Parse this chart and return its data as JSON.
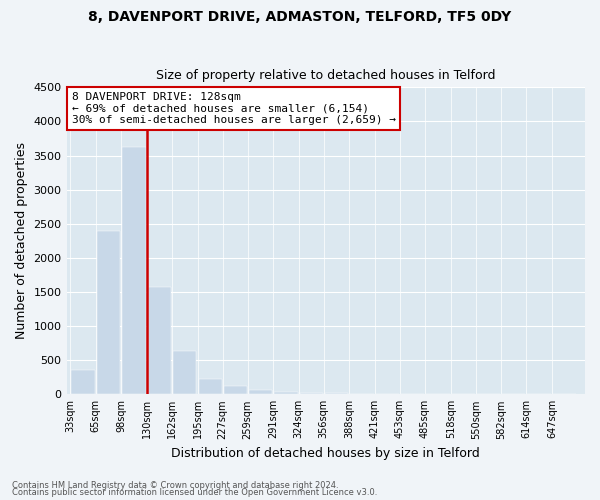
{
  "title1": "8, DAVENPORT DRIVE, ADMASTON, TELFORD, TF5 0DY",
  "title2": "Size of property relative to detached houses in Telford",
  "xlabel": "Distribution of detached houses by size in Telford",
  "ylabel": "Number of detached properties",
  "annotation_line1": "8 DAVENPORT DRIVE: 128sqm",
  "annotation_line2": "← 69% of detached houses are smaller (6,154)",
  "annotation_line3": "30% of semi-detached houses are larger (2,659) →",
  "property_size": 128,
  "bar_edges": [
    33,
    65,
    98,
    130,
    162,
    195,
    227,
    259,
    291,
    324,
    356,
    388,
    421,
    453,
    485,
    518,
    550,
    582,
    614,
    647,
    679
  ],
  "bar_values": [
    350,
    2400,
    3620,
    1580,
    640,
    230,
    120,
    60,
    35,
    20,
    15,
    10,
    8,
    5,
    4,
    3,
    2,
    2,
    1,
    1
  ],
  "bar_color": "#c8d8e8",
  "vline_color": "#cc0000",
  "vline_x": 130,
  "annotation_box_color": "#cc0000",
  "ylim": [
    0,
    4500
  ],
  "yticks": [
    0,
    500,
    1000,
    1500,
    2000,
    2500,
    3000,
    3500,
    4000,
    4500
  ],
  "footer1": "Contains HM Land Registry data © Crown copyright and database right 2024.",
  "footer2": "Contains public sector information licensed under the Open Government Licence v3.0.",
  "background_color": "#f0f4f8",
  "plot_background": "#dce8f0"
}
